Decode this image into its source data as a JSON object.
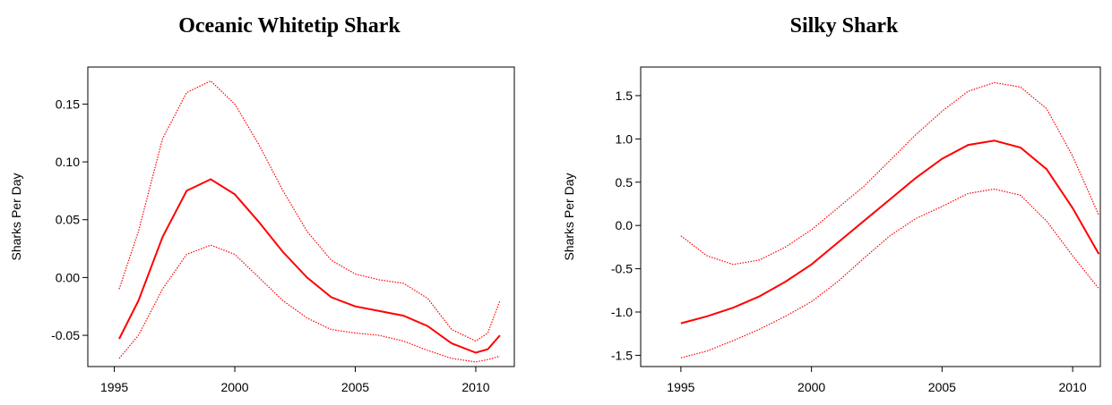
{
  "chart_data": [
    {
      "type": "line",
      "title": "Oceanic Whitetip Shark",
      "ylabel": "Sharks Per Day",
      "xlim": [
        1993.9,
        2011.6
      ],
      "xticks": [
        1995,
        2000,
        2005,
        2010
      ],
      "ylim": [
        -0.077,
        0.182
      ],
      "yticks": [
        -0.05,
        {
          "value": 0,
          "label": "0.00"
        },
        0.05,
        {
          "value": 0.1,
          "label": "0.10"
        },
        0.15
      ],
      "x": [
        1995.2,
        1996,
        1997,
        1998,
        1999,
        2000,
        2001,
        2002,
        2003,
        2004,
        2005,
        2006,
        2007,
        2008,
        2009,
        2010,
        2010.5,
        2011
      ],
      "series": [
        {
          "color": "#ff0000",
          "style": "solid",
          "values": [
            -0.053,
            -0.02,
            0.035,
            0.075,
            0.085,
            0.072,
            0.048,
            0.022,
            0.0,
            -0.017,
            -0.025,
            -0.029,
            -0.033,
            -0.042,
            -0.057,
            -0.065,
            -0.062,
            -0.05
          ]
        },
        {
          "color": "#ff0000",
          "style": "dotted",
          "values": [
            -0.01,
            0.04,
            0.12,
            0.16,
            0.17,
            0.15,
            0.115,
            0.075,
            0.04,
            0.015,
            0.003,
            -0.002,
            -0.005,
            -0.018,
            -0.045,
            -0.055,
            -0.048,
            -0.02
          ]
        },
        {
          "color": "#ff0000",
          "style": "dotted",
          "values": [
            -0.07,
            -0.05,
            -0.01,
            0.02,
            0.028,
            0.02,
            0.0,
            -0.02,
            -0.035,
            -0.045,
            -0.048,
            -0.05,
            -0.055,
            -0.063,
            -0.07,
            -0.073,
            -0.071,
            -0.068
          ]
        }
      ]
    },
    {
      "type": "line",
      "title": "Silky Shark",
      "ylabel": "Sharks Per Day",
      "xlim": [
        1993.46,
        2011.06
      ],
      "xticks": [
        1995,
        2000,
        2005,
        2010
      ],
      "ylim": [
        -1.63,
        1.83
      ],
      "yticks": [
        -1.5,
        {
          "value": -1,
          "label": "-1.0"
        },
        -0.5,
        {
          "value": 0,
          "label": "0.0"
        },
        0.5,
        {
          "value": 1,
          "label": "1.0"
        },
        1.5
      ],
      "x": [
        1995,
        1996,
        1997,
        1998,
        1999,
        2000,
        2001,
        2002,
        2003,
        2004,
        2005,
        2006,
        2007,
        2008,
        2009,
        2010,
        2011
      ],
      "series": [
        {
          "color": "#ff0000",
          "style": "solid",
          "values": [
            -1.13,
            -1.05,
            -0.95,
            -0.82,
            -0.65,
            -0.45,
            -0.2,
            0.05,
            0.3,
            0.55,
            0.77,
            0.93,
            0.98,
            0.9,
            0.65,
            0.2,
            -0.33
          ]
        },
        {
          "color": "#ff0000",
          "style": "dotted",
          "values": [
            -0.12,
            -0.35,
            -0.45,
            -0.4,
            -0.25,
            -0.05,
            0.2,
            0.45,
            0.75,
            1.05,
            1.32,
            1.55,
            1.65,
            1.6,
            1.35,
            0.8,
            0.12
          ]
        },
        {
          "color": "#ff0000",
          "style": "dotted",
          "values": [
            -1.53,
            -1.45,
            -1.33,
            -1.2,
            -1.05,
            -0.88,
            -0.65,
            -0.38,
            -0.12,
            0.08,
            0.22,
            0.37,
            0.42,
            0.35,
            0.05,
            -0.35,
            -0.73
          ]
        }
      ]
    }
  ]
}
